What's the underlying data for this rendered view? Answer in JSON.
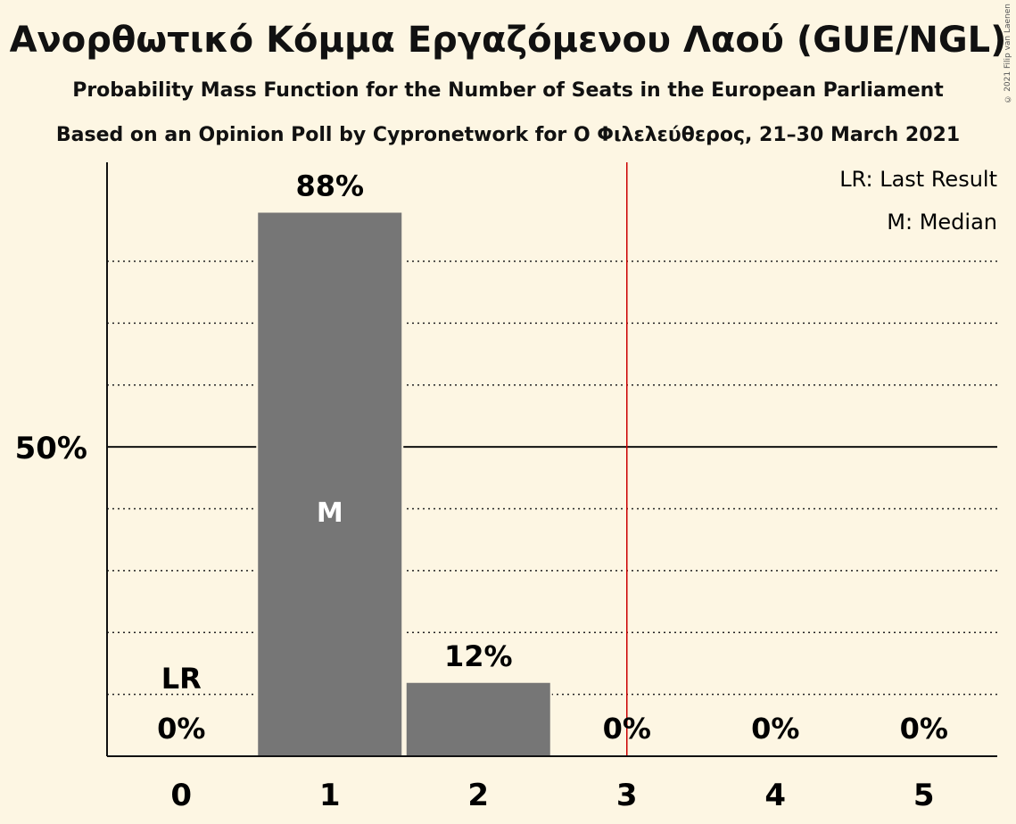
{
  "title": "Ανορθωτικό Κόμμα Εργαζόμενου Λαού (GUE/NGL)",
  "subtitle": "Probability Mass Function for the Number of Seats in the European Parliament",
  "subtitle2": "Based on an Opinion Poll by Cypronetwork for Ο Φιλελεύθερος, 21–30 March 2021",
  "copyright": "© 2021 Filip van Laenen",
  "legend": {
    "last_result": "LR: Last Result",
    "median": "M: Median"
  },
  "colors": {
    "background": "#fdf6e3",
    "bar": "#767676",
    "majority_line": "#cc0000"
  },
  "chart_data": {
    "type": "bar",
    "categories": [
      "0",
      "1",
      "2",
      "3",
      "4",
      "5"
    ],
    "values": [
      0,
      88,
      12,
      0,
      0,
      0
    ],
    "value_labels": [
      "0%",
      "88%",
      "12%",
      "0%",
      "0%",
      "0%"
    ],
    "ylim": [
      0,
      96
    ],
    "y_tick_label": "50%",
    "y_tick_value": 50,
    "dotted_gridlines": [
      10,
      20,
      30,
      40,
      60,
      70,
      80
    ],
    "last_result_seat": 0,
    "last_result_label": "LR",
    "median_seat": 1,
    "median_label": "M",
    "majority_threshold": 3.5,
    "legend_position": "top-right"
  }
}
